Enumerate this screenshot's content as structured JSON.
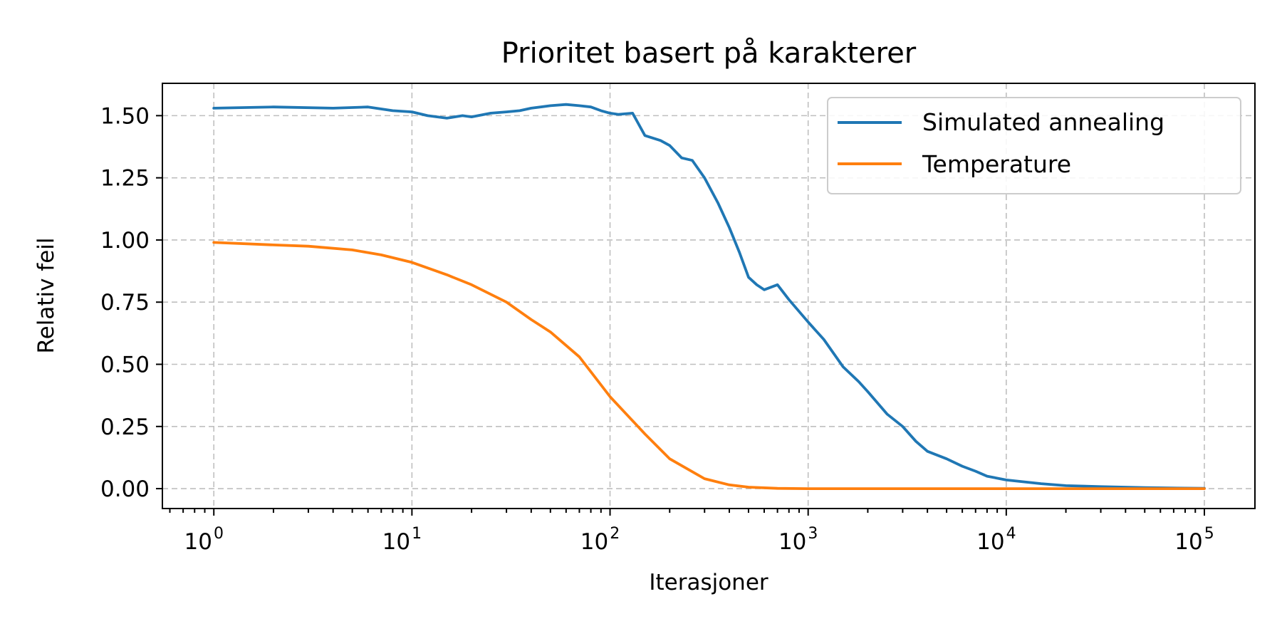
{
  "chart_data": {
    "type": "line",
    "title": "Prioritet basert på karakterer",
    "xlabel": "Iterasjoner",
    "ylabel": "Relativ feil",
    "xscale": "log",
    "xlim": [
      0.55,
      180000
    ],
    "ylim": [
      -0.08,
      1.63
    ],
    "grid": true,
    "legend_position": "top-right",
    "x_ticks": [
      {
        "base": "10",
        "exp": "0",
        "value": 1
      },
      {
        "base": "10",
        "exp": "1",
        "value": 10
      },
      {
        "base": "10",
        "exp": "2",
        "value": 100
      },
      {
        "base": "10",
        "exp": "3",
        "value": 1000
      },
      {
        "base": "10",
        "exp": "4",
        "value": 10000
      },
      {
        "base": "10",
        "exp": "5",
        "value": 100000
      }
    ],
    "y_ticks": [
      {
        "label": "0.00",
        "value": 0
      },
      {
        "label": "0.25",
        "value": 0.25
      },
      {
        "label": "0.50",
        "value": 0.5
      },
      {
        "label": "0.75",
        "value": 0.75
      },
      {
        "label": "1.00",
        "value": 1.0
      },
      {
        "label": "1.25",
        "value": 1.25
      },
      {
        "label": "1.50",
        "value": 1.5
      }
    ],
    "series": [
      {
        "name": "Simulated annealing",
        "color": "#1f77b4",
        "x": [
          1,
          2,
          4,
          6,
          8,
          10,
          12,
          15,
          18,
          20,
          25,
          30,
          35,
          40,
          50,
          60,
          70,
          80,
          90,
          100,
          110,
          130,
          150,
          180,
          200,
          230,
          260,
          300,
          350,
          400,
          450,
          500,
          550,
          600,
          700,
          800,
          1000,
          1200,
          1500,
          1800,
          2000,
          2500,
          3000,
          3500,
          4000,
          5000,
          6000,
          7000,
          8000,
          10000,
          15000,
          20000,
          30000,
          50000,
          100000
        ],
        "y": [
          1.53,
          1.535,
          1.53,
          1.535,
          1.52,
          1.515,
          1.5,
          1.49,
          1.5,
          1.495,
          1.51,
          1.515,
          1.52,
          1.53,
          1.54,
          1.545,
          1.54,
          1.535,
          1.52,
          1.51,
          1.505,
          1.51,
          1.42,
          1.4,
          1.38,
          1.33,
          1.32,
          1.25,
          1.15,
          1.05,
          0.95,
          0.85,
          0.82,
          0.8,
          0.82,
          0.76,
          0.67,
          0.6,
          0.49,
          0.43,
          0.39,
          0.3,
          0.25,
          0.19,
          0.15,
          0.12,
          0.09,
          0.07,
          0.05,
          0.035,
          0.02,
          0.012,
          0.008,
          0.004,
          0.001
        ]
      },
      {
        "name": "Temperature",
        "color": "#ff7f0e",
        "x": [
          1,
          2,
          3,
          5,
          7,
          10,
          15,
          20,
          30,
          40,
          50,
          70,
          100,
          150,
          200,
          300,
          400,
          500,
          700,
          1000,
          2000,
          10000,
          100000
        ],
        "y": [
          0.99,
          0.98,
          0.975,
          0.96,
          0.94,
          0.91,
          0.86,
          0.82,
          0.75,
          0.68,
          0.63,
          0.53,
          0.37,
          0.22,
          0.12,
          0.04,
          0.015,
          0.006,
          0.001,
          0.0,
          0.0,
          0.0,
          0.0
        ]
      }
    ]
  }
}
